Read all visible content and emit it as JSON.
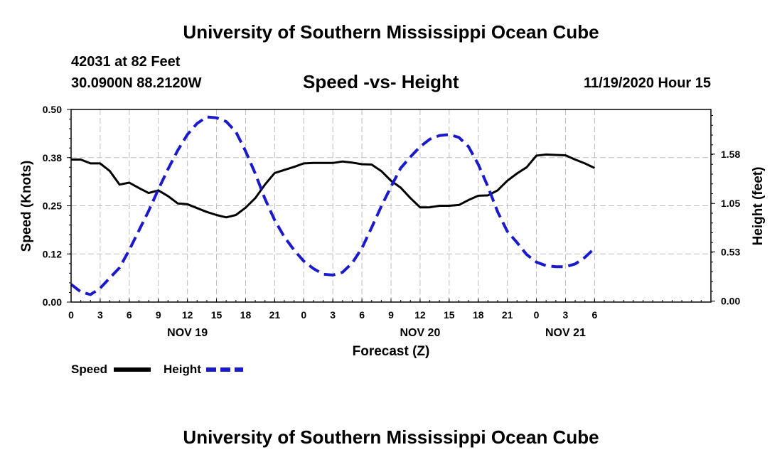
{
  "page": {
    "title_top": "University of Southern Mississippi Ocean Cube",
    "title_bottom": "University of Southern Mississippi Ocean Cube",
    "station": "42031 at 82 Feet",
    "coords": "30.0900N 88.2120W",
    "subtitle": "Speed -vs- Height",
    "datetime": "11/19/2020 Hour 15"
  },
  "colors": {
    "speed": "#000000",
    "height": "#1a1acc",
    "grid": "#bdbdbd"
  },
  "chart_data": {
    "type": "line",
    "title": "Speed -vs- Height",
    "xlabel": "Forecast (Z)",
    "ylabel": "Speed (Knots)",
    "y2label": "Height (feet)",
    "grid": true,
    "x_range_hours": [
      0,
      66
    ],
    "ylim": [
      0,
      0.5
    ],
    "y2lim": [
      -0.01,
      2.06
    ],
    "x_ticks": [
      {
        "hour": 0,
        "label": "0"
      },
      {
        "hour": 3,
        "label": "3"
      },
      {
        "hour": 6,
        "label": "6"
      },
      {
        "hour": 9,
        "label": "9"
      },
      {
        "hour": 12,
        "label": "12"
      },
      {
        "hour": 15,
        "label": "15"
      },
      {
        "hour": 18,
        "label": "18"
      },
      {
        "hour": 21,
        "label": "21"
      },
      {
        "hour": 24,
        "label": "0"
      },
      {
        "hour": 27,
        "label": "3"
      },
      {
        "hour": 30,
        "label": "6"
      },
      {
        "hour": 33,
        "label": "9"
      },
      {
        "hour": 36,
        "label": "12"
      },
      {
        "hour": 39,
        "label": "15"
      },
      {
        "hour": 42,
        "label": "18"
      },
      {
        "hour": 45,
        "label": "21"
      },
      {
        "hour": 48,
        "label": "0"
      },
      {
        "hour": 51,
        "label": "3"
      },
      {
        "hour": 54,
        "label": "6"
      }
    ],
    "day_labels": [
      {
        "hour": 12,
        "label": "NOV 19"
      },
      {
        "hour": 36,
        "label": "NOV 20"
      },
      {
        "hour": 51,
        "label": "NOV 21"
      }
    ],
    "y_ticks": [
      {
        "value": 0.0,
        "label": "0.00"
      },
      {
        "value": 0.125,
        "label": "0.12"
      },
      {
        "value": 0.25,
        "label": "0.25"
      },
      {
        "value": 0.375,
        "label": "0.38"
      },
      {
        "value": 0.5,
        "label": "0.50"
      }
    ],
    "y2_ticks": [
      {
        "value": 0.0,
        "label": "0.00"
      },
      {
        "value": 0.53,
        "label": "0.53"
      },
      {
        "value": 1.05,
        "label": "1.05"
      },
      {
        "value": 1.58,
        "label": "1.58"
      }
    ],
    "series": [
      {
        "name": "Speed",
        "axis": "left",
        "style": "solid",
        "x": [
          0,
          1,
          2,
          3,
          4,
          5,
          6,
          7,
          8,
          9,
          10,
          11,
          12,
          13,
          14,
          15,
          16,
          17,
          18,
          19,
          20,
          21,
          22,
          23,
          24,
          25,
          26,
          27,
          28,
          29,
          30,
          31,
          32,
          33,
          34,
          35,
          36,
          37,
          38,
          39,
          40,
          41,
          42,
          43,
          44,
          45,
          46,
          47,
          48,
          49,
          50,
          51,
          52,
          53,
          54
        ],
        "values": [
          0.37,
          0.37,
          0.36,
          0.36,
          0.34,
          0.305,
          0.31,
          0.296,
          0.283,
          0.29,
          0.275,
          0.256,
          0.254,
          0.244,
          0.234,
          0.226,
          0.22,
          0.226,
          0.245,
          0.27,
          0.305,
          0.335,
          0.343,
          0.351,
          0.36,
          0.361,
          0.361,
          0.361,
          0.365,
          0.362,
          0.358,
          0.357,
          0.34,
          0.315,
          0.297,
          0.27,
          0.246,
          0.246,
          0.25,
          0.25,
          0.252,
          0.265,
          0.276,
          0.277,
          0.29,
          0.315,
          0.334,
          0.35,
          0.38,
          0.383,
          0.382,
          0.381,
          0.37,
          0.36,
          0.348
        ]
      },
      {
        "name": "Height",
        "axis": "right",
        "style": "dashed",
        "x": [
          0,
          1,
          2,
          3,
          4,
          5,
          6,
          7,
          8,
          9,
          10,
          11,
          12,
          13,
          14,
          15,
          16,
          17,
          18,
          19,
          20,
          21,
          22,
          23,
          24,
          25,
          26,
          27,
          28,
          29,
          30,
          31,
          32,
          33,
          34,
          35,
          36,
          37,
          38,
          39,
          40,
          41,
          42,
          43,
          44,
          45,
          46,
          47,
          48,
          49,
          50,
          51,
          52,
          53,
          54
        ],
        "values": [
          0.18,
          0.1,
          0.07,
          0.14,
          0.25,
          0.36,
          0.55,
          0.76,
          0.97,
          1.2,
          1.42,
          1.62,
          1.79,
          1.91,
          1.98,
          1.97,
          1.93,
          1.82,
          1.61,
          1.37,
          1.1,
          0.87,
          0.69,
          0.55,
          0.43,
          0.35,
          0.29,
          0.28,
          0.31,
          0.41,
          0.57,
          0.79,
          1.02,
          1.23,
          1.43,
          1.55,
          1.66,
          1.74,
          1.78,
          1.79,
          1.76,
          1.66,
          1.47,
          1.23,
          0.96,
          0.75,
          0.63,
          0.5,
          0.42,
          0.38,
          0.37,
          0.37,
          0.4,
          0.47,
          0.57
        ]
      }
    ],
    "legend": [
      {
        "label": "Speed",
        "style": "solid"
      },
      {
        "label": "Height",
        "style": "dashed"
      }
    ]
  }
}
